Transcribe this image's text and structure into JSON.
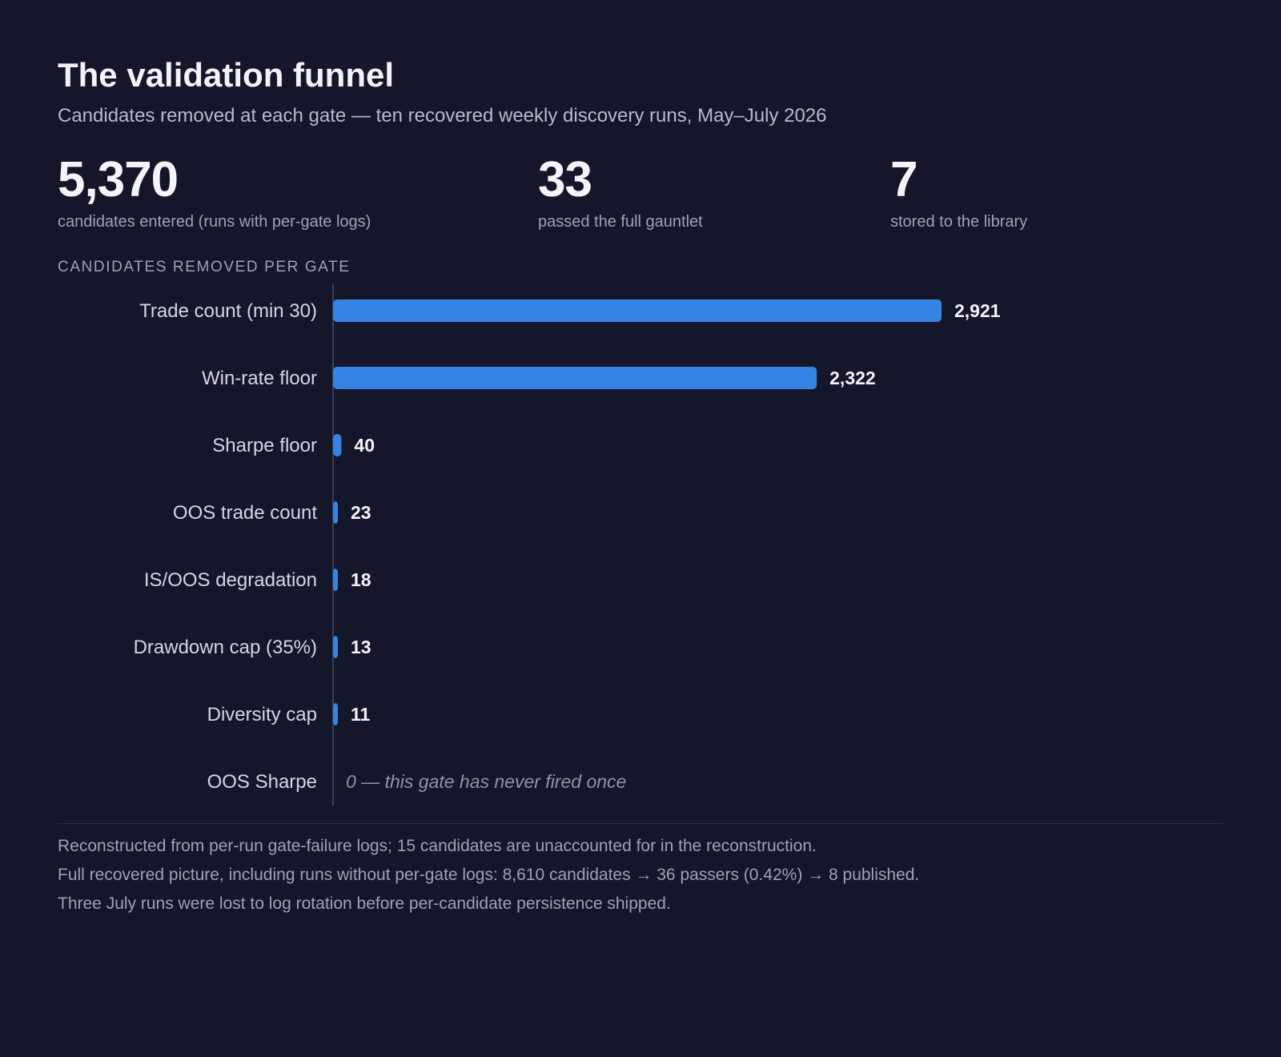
{
  "header": {
    "title": "The validation funnel",
    "subtitle": "Candidates removed at each gate — ten recovered weekly discovery runs, May–July 2026"
  },
  "stats": [
    {
      "value": "5,370",
      "label": "candidates entered (runs with per-gate logs)"
    },
    {
      "value": "33",
      "label": "passed the full gauntlet"
    },
    {
      "value": "7",
      "label": "stored to the library"
    }
  ],
  "section_label": "CANDIDATES REMOVED PER GATE",
  "chart_data": {
    "type": "bar",
    "orientation": "horizontal",
    "categories": [
      "Trade count (min 30)",
      "Win-rate floor",
      "Sharpe floor",
      "OOS trade count",
      "IS/OOS degradation",
      "Drawdown cap (35%)",
      "Diversity cap",
      "OOS Sharpe"
    ],
    "values": [
      2921,
      2322,
      40,
      23,
      18,
      13,
      11,
      0
    ],
    "value_labels": [
      "2,921",
      "2,322",
      "40",
      "23",
      "18",
      "13",
      "11",
      "0 — this gate has never fired once"
    ],
    "xlim": [
      0,
      2921
    ],
    "grid": false,
    "bar_color": "#3584e4"
  },
  "notes": [
    "Reconstructed from per-run gate-failure logs; 15 candidates are unaccounted for in the reconstruction.",
    "Full recovered picture, including runs without per-gate logs: 8,610 candidates → 36 passers (0.42%) → 8 published.",
    "Three July runs were lost to log rotation before per-candidate persistence shipped."
  ]
}
